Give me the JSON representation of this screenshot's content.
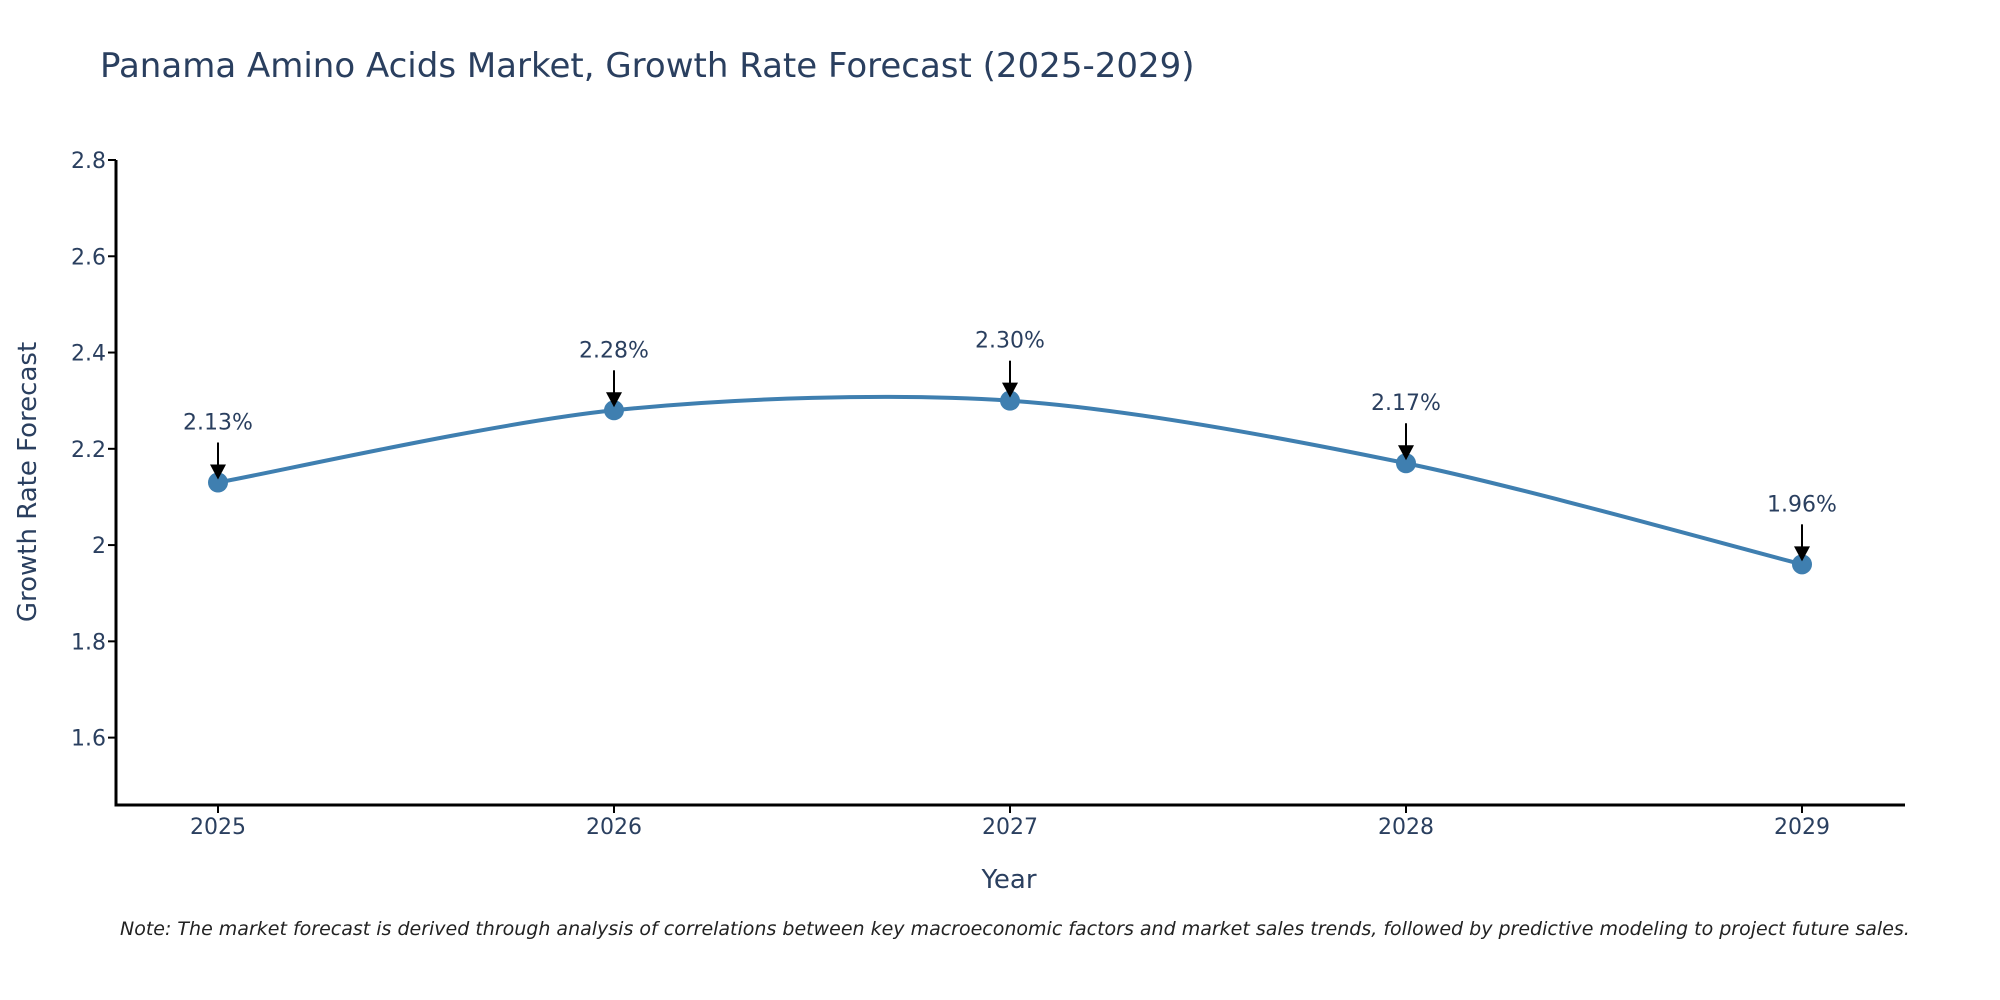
{
  "chart_data": {
    "type": "line",
    "title": "Panama Amino Acids Market, Growth Rate Forecast (2025-2029)",
    "xlabel": "Year",
    "ylabel": "Growth Rate Forecast",
    "categories": [
      "2025",
      "2026",
      "2027",
      "2028",
      "2029"
    ],
    "series": [
      {
        "name": "Growth Rate Forecast",
        "values": [
          2.13,
          2.28,
          2.3,
          2.17,
          1.96
        ],
        "labels": [
          "2.13%",
          "2.28%",
          "2.30%",
          "2.17%",
          "1.96%"
        ],
        "color": "#3f7fb0"
      }
    ],
    "ylim": [
      1.46,
      2.8
    ],
    "yticks": [
      1.6,
      1.8,
      2.0,
      2.2,
      2.4,
      2.6,
      2.8
    ],
    "ytick_labels": [
      "1.6",
      "1.8",
      "2",
      "2.2",
      "2.4",
      "2.6",
      "2.8"
    ],
    "grid": false,
    "line_shape": "spline",
    "note": "Note: The market forecast is derived through analysis of correlations between key macroeconomic factors and market sales trends, followed by predictive modeling to project future sales."
  },
  "colors": {
    "line": "#3f7fb0",
    "text": "#2a3f5f",
    "axis": "#000000"
  }
}
